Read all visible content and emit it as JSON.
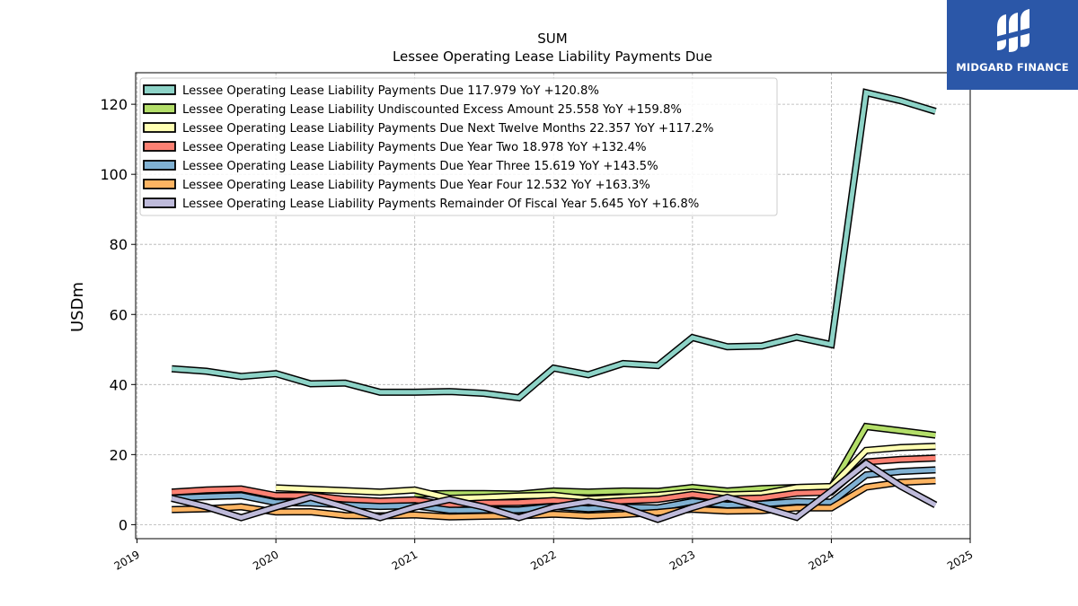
{
  "chart_data": {
    "type": "line",
    "title": "SUM",
    "subtitle": "Lessee Operating Lease Liability Payments Due",
    "ylabel": "USDm",
    "xlabel": "",
    "xlim": [
      2018.99,
      2025.0
    ],
    "ylim": [
      -4,
      129
    ],
    "xticks": [
      "2019",
      "2020",
      "2021",
      "2022",
      "2023",
      "2024",
      "2025"
    ],
    "yticks": [
      0,
      20,
      40,
      60,
      80,
      100,
      120
    ],
    "grid": true,
    "legend_position": "top-left",
    "x": [
      2019.25,
      2019.5,
      2019.75,
      2020.0,
      2020.25,
      2020.5,
      2020.75,
      2021.0,
      2021.25,
      2021.5,
      2021.75,
      2022.0,
      2022.25,
      2022.5,
      2022.75,
      2023.0,
      2023.25,
      2023.5,
      2023.75,
      2024.0,
      2024.25,
      2024.5,
      2024.75
    ],
    "series": [
      {
        "name": "Lessee Operating Lease Liability Payments Due",
        "label": "Lessee Operating Lease Liability Payments Due  117.979 YoY +120.8%",
        "color": "#8dd3c7",
        "values": [
          44.5,
          43.8,
          42.3,
          43.1,
          40.2,
          40.4,
          37.8,
          37.8,
          38.0,
          37.5,
          36.2,
          44.7,
          42.8,
          46.0,
          45.4,
          53.4,
          50.8,
          51.0,
          53.5,
          51.4,
          123.3,
          121.0,
          117.979
        ]
      },
      {
        "name": "Lessee Operating Lease Liability Undiscounted Excess Amount",
        "label": "Lessee Operating Lease Liability Undiscounted Excess Amount  25.558 YoY +159.8%",
        "color": "#b3de69",
        "values": [
          null,
          null,
          null,
          null,
          null,
          null,
          null,
          8.7,
          8.9,
          8.9,
          8.7,
          9.6,
          9.3,
          9.6,
          9.5,
          10.6,
          9.6,
          10.3,
          10.6,
          10.7,
          28.0,
          26.8,
          25.558
        ]
      },
      {
        "name": "Lessee Operating Lease Liability Payments Due Next Twelve Months",
        "label": "Lessee Operating Lease Liability Payments Due Next Twelve Months  22.357 YoY +117.2%",
        "color": "#ffffb3",
        "values": [
          null,
          null,
          null,
          10.5,
          10.1,
          9.7,
          9.3,
          9.9,
          7.5,
          7.8,
          8.2,
          8.4,
          7.3,
          7.8,
          8.4,
          9.3,
          8.5,
          8.8,
          10.6,
          10.9,
          21.2,
          22.0,
          22.357
        ]
      },
      {
        "name": "Lessee Operating Lease Liability Payments Due Year Two",
        "label": "Lessee Operating Lease Liability Payments Due Year Two  18.978 YoY +132.4%",
        "color": "#fb8072",
        "values": [
          9.3,
          9.9,
          10.2,
          8.3,
          8.3,
          7.2,
          6.7,
          7.1,
          5.6,
          6.2,
          6.3,
          6.9,
          6.2,
          6.8,
          7.2,
          8.6,
          7.3,
          7.6,
          9.0,
          9.3,
          17.9,
          18.6,
          18.978
        ]
      },
      {
        "name": "Lessee Operating Lease Liability Payments Due Year Three",
        "label": "Lessee Operating Lease Liability Payments Due Year Three  15.619 YoY +143.5%",
        "color": "#80b1d3",
        "values": [
          7.6,
          8.0,
          8.3,
          6.3,
          6.2,
          5.6,
          5.2,
          5.4,
          4.1,
          4.2,
          4.2,
          5.2,
          4.5,
          5.0,
          4.8,
          6.6,
          5.6,
          5.9,
          6.6,
          6.4,
          14.2,
          15.2,
          15.619
        ]
      },
      {
        "name": "Lessee Operating Lease Liability Payments Due Year Four",
        "label": "Lessee Operating Lease Liability Payments Due Year Four  12.532 YoY +163.3%",
        "color": "#fdb462",
        "values": [
          4.3,
          4.5,
          5.1,
          3.6,
          3.7,
          2.6,
          2.5,
          2.8,
          2.2,
          2.4,
          2.5,
          3.0,
          2.5,
          2.9,
          3.5,
          4.4,
          3.9,
          4.0,
          4.8,
          4.8,
          10.7,
          12.1,
          12.532
        ]
      },
      {
        "name": "Lessee Operating Lease Liability Payments Remainder Of Fiscal Year",
        "label": "Lessee Operating Lease Liability Payments Remainder Of Fiscal Year  5.645 YoY +16.8%",
        "color": "#bebada",
        "values": [
          7.5,
          5.1,
          2.0,
          5.0,
          7.8,
          5.0,
          2.0,
          5.0,
          7.2,
          5.0,
          2.0,
          5.0,
          6.6,
          4.9,
          1.5,
          4.9,
          7.8,
          5.0,
          2.1,
          9.6,
          17.5,
          11.0,
          5.645
        ]
      }
    ]
  },
  "brand": {
    "name": "MIDGARD FINANCE",
    "color": "#2b57a8",
    "icon": "midgard-logo-icon"
  }
}
